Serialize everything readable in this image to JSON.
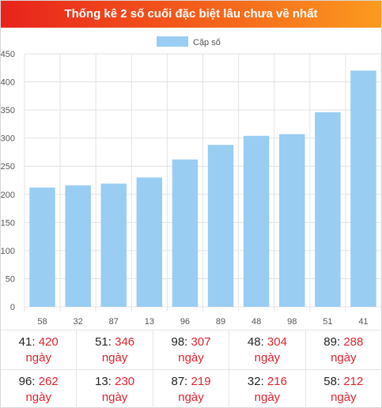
{
  "header": {
    "title": "Thống kê 2 số cuối đặc biệt lâu chưa về nhất"
  },
  "colors": {
    "bar": "#99cdf2",
    "grid": "#e3e3e3",
    "axis_text": "#555555",
    "accent_red": "#e0222d"
  },
  "chart_data": {
    "type": "bar",
    "categories": [
      "58",
      "32",
      "87",
      "13",
      "96",
      "89",
      "48",
      "98",
      "51",
      "41"
    ],
    "series": [
      {
        "name": "Cặp số",
        "values": [
          212,
          216,
          219,
          230,
          262,
          288,
          304,
          307,
          346,
          420
        ]
      }
    ],
    "yticks": [
      "0",
      "50",
      "100",
      "150",
      "200",
      "250",
      "300",
      "350",
      "400",
      "450"
    ],
    "ylim": [
      0,
      450
    ],
    "grid": true,
    "legend": "top-center"
  },
  "stats": {
    "unit": "ngày",
    "items": [
      {
        "num": "41",
        "count": "420"
      },
      {
        "num": "51",
        "count": "346"
      },
      {
        "num": "98",
        "count": "307"
      },
      {
        "num": "48",
        "count": "304"
      },
      {
        "num": "89",
        "count": "288"
      },
      {
        "num": "96",
        "count": "262"
      },
      {
        "num": "13",
        "count": "230"
      },
      {
        "num": "87",
        "count": "219"
      },
      {
        "num": "32",
        "count": "216"
      },
      {
        "num": "58",
        "count": "212"
      }
    ]
  }
}
